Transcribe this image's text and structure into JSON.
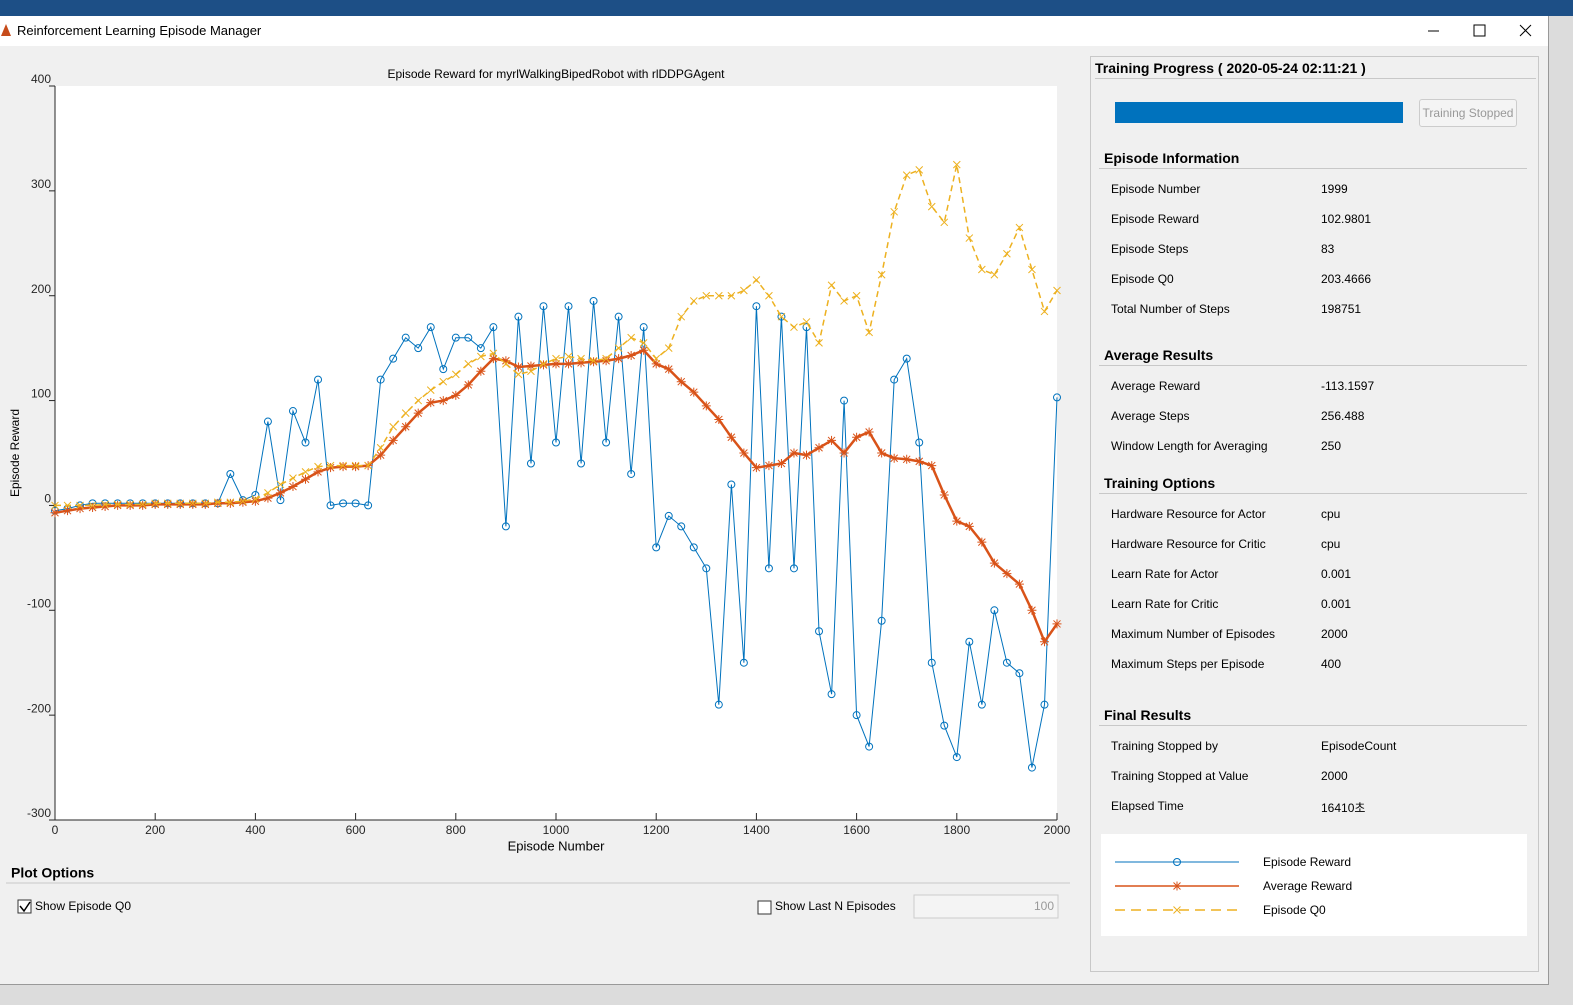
{
  "window": {
    "title": "Reinforcement Learning Episode Manager"
  },
  "chart_data": {
    "type": "line",
    "title": "Episode Reward for myrlWalkingBipedRobot with rlDDPGAgent",
    "x_label": "Episode Number",
    "y_label": "Episode Reward",
    "x": [
      0,
      25,
      50,
      75,
      100,
      125,
      150,
      175,
      200,
      225,
      250,
      275,
      300,
      325,
      350,
      375,
      400,
      425,
      450,
      475,
      500,
      525,
      550,
      575,
      600,
      625,
      650,
      675,
      700,
      725,
      750,
      775,
      800,
      825,
      850,
      875,
      900,
      925,
      950,
      975,
      1000,
      1025,
      1050,
      1075,
      1100,
      1125,
      1150,
      1175,
      1200,
      1225,
      1250,
      1275,
      1300,
      1325,
      1350,
      1375,
      1400,
      1425,
      1450,
      1475,
      1500,
      1525,
      1550,
      1575,
      1600,
      1625,
      1650,
      1675,
      1700,
      1725,
      1750,
      1775,
      1800,
      1825,
      1850,
      1875,
      1900,
      1925,
      1950,
      1975,
      2000
    ],
    "series": [
      {
        "name": "Episode Reward",
        "color": "#0072bd",
        "marker": "circle",
        "dashed": false,
        "width": 1,
        "values": [
          -5,
          -3,
          0,
          2,
          2,
          2,
          2,
          2,
          2,
          2,
          2,
          2,
          2,
          2,
          30,
          5,
          10,
          80,
          5,
          90,
          60,
          120,
          0,
          2,
          2,
          0,
          120,
          140,
          160,
          150,
          170,
          130,
          160,
          160,
          150,
          170,
          -20,
          180,
          40,
          190,
          60,
          190,
          40,
          195,
          60,
          180,
          30,
          170,
          -40,
          -10,
          -20,
          -40,
          -60,
          -190,
          20,
          -150,
          190,
          -60,
          180,
          -60,
          170,
          -120,
          -180,
          100,
          -200,
          -230,
          -110,
          120,
          140,
          60,
          -150,
          -210,
          -240,
          -130,
          -190,
          -100,
          -150,
          -160,
          -250,
          -190,
          103
        ]
      },
      {
        "name": "Average Reward",
        "color": "#d95319",
        "marker": "star",
        "dashed": false,
        "width": 2.5,
        "values": [
          -7,
          -5,
          -3,
          -2,
          -1,
          0,
          0,
          0,
          1,
          1,
          1,
          1,
          1,
          2,
          2,
          3,
          4,
          7,
          12,
          18,
          25,
          32,
          36,
          37,
          37,
          38,
          48,
          62,
          75,
          88,
          98,
          100,
          105,
          115,
          128,
          140,
          138,
          132,
          133,
          134,
          135,
          135,
          136,
          137,
          138,
          140,
          143,
          148,
          135,
          130,
          118,
          108,
          95,
          82,
          65,
          50,
          36,
          38,
          40,
          50,
          48,
          55,
          62,
          50,
          65,
          70,
          50,
          45,
          44,
          42,
          38,
          10,
          -15,
          -20,
          -35,
          -55,
          -65,
          -75,
          -100,
          -130,
          -113
        ]
      },
      {
        "name": "Episode Q0",
        "color": "#edb120",
        "marker": "x",
        "dashed": true,
        "width": 1.5,
        "values": [
          0,
          0,
          0,
          0,
          1,
          1,
          1,
          1,
          2,
          2,
          2,
          2,
          2,
          3,
          3,
          4,
          6,
          12,
          20,
          26,
          32,
          37,
          38,
          38,
          38,
          38,
          55,
          75,
          88,
          100,
          110,
          118,
          125,
          135,
          142,
          145,
          135,
          125,
          128,
          135,
          140,
          142,
          140,
          138,
          140,
          150,
          160,
          155,
          140,
          150,
          180,
          195,
          200,
          200,
          200,
          205,
          215,
          200,
          180,
          170,
          175,
          155,
          210,
          195,
          200,
          165,
          220,
          280,
          315,
          320,
          285,
          270,
          325,
          255,
          225,
          220,
          240,
          265,
          225,
          185,
          205
        ]
      }
    ],
    "xlim": [
      0,
      2000
    ],
    "ylim": [
      -300,
      400
    ],
    "xticks": [
      0,
      200,
      400,
      600,
      800,
      1000,
      1200,
      1400,
      1600,
      1800,
      2000
    ],
    "yticks": [
      -300,
      -200,
      -100,
      0,
      100,
      200,
      300,
      400
    ],
    "grid": false
  },
  "plot_options": {
    "title": "Plot Options",
    "show_q0": {
      "label": "Show Episode Q0",
      "checked": true
    },
    "show_last_n": {
      "label": "Show Last N Episodes",
      "checked": false,
      "value": "100"
    }
  },
  "training_progress": {
    "title": "Training Progress ( 2020-05-24 02:11:21 )",
    "button": "Training Stopped",
    "sections": [
      {
        "title": "Episode Information",
        "rows": [
          [
            "Episode Number",
            "1999"
          ],
          [
            "Episode Reward",
            "102.9801"
          ],
          [
            "Episode Steps",
            "83"
          ],
          [
            "Episode Q0",
            "203.4666"
          ],
          [
            "Total Number of Steps",
            "198751"
          ]
        ]
      },
      {
        "title": "Average Results",
        "rows": [
          [
            "Average Reward",
            "-113.1597"
          ],
          [
            "Average Steps",
            "256.488"
          ],
          [
            "Window Length for Averaging",
            "250"
          ]
        ]
      },
      {
        "title": "Training Options",
        "rows": [
          [
            "Hardware Resource for Actor",
            "cpu"
          ],
          [
            "Hardware Resource for Critic",
            "cpu"
          ],
          [
            "Learn Rate for Actor",
            "0.001"
          ],
          [
            "Learn Rate for Critic",
            "0.001"
          ],
          [
            "Maximum Number of Episodes",
            "2000"
          ],
          [
            "Maximum Steps per Episode",
            "400"
          ]
        ]
      },
      {
        "title": "Final Results",
        "rows": [
          [
            "Training Stopped by",
            "EpisodeCount"
          ],
          [
            "Training Stopped at Value",
            "2000"
          ],
          [
            "Elapsed Time",
            "16410초"
          ]
        ]
      }
    ]
  }
}
